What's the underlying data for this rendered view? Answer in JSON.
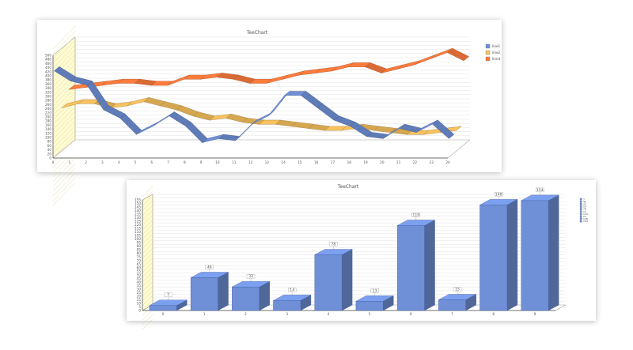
{
  "chart_data": [
    {
      "type": "line",
      "title": "TeeChart",
      "categories": [
        "0",
        "1",
        "2",
        "3",
        "4",
        "5",
        "6",
        "7",
        "8",
        "9",
        "10",
        "11",
        "12",
        "13",
        "14",
        "15",
        "16",
        "17",
        "18",
        "19",
        "20",
        "21",
        "22",
        "23",
        "24"
      ],
      "ylim": [
        0,
        500
      ],
      "yticks": [
        "0",
        "20",
        "40",
        "60",
        "80",
        "100",
        "120",
        "140",
        "160",
        "180",
        "200",
        "220",
        "240",
        "260",
        "280",
        "300",
        "320",
        "340",
        "360",
        "380",
        "400",
        "420",
        "440",
        "460",
        "480",
        "500"
      ],
      "grid": true,
      "legend_position": "right",
      "series": [
        {
          "name": "line1",
          "color": "#6f8fd6",
          "values": [
            420,
            370,
            350,
            230,
            190,
            110,
            150,
            200,
            150,
            70,
            90,
            80,
            160,
            200,
            300,
            300,
            240,
            180,
            150,
            100,
            90,
            140,
            120,
            160,
            90
          ]
        },
        {
          "name": "line2",
          "color": "#f9c25e",
          "values": [
            210,
            230,
            230,
            210,
            220,
            240,
            220,
            200,
            170,
            150,
            160,
            140,
            130,
            130,
            120,
            110,
            100,
            100,
            110,
            100,
            90,
            80,
            80,
            90,
            100
          ]
        },
        {
          "name": "line3",
          "color": "#ff7c3c",
          "values": [
            270,
            280,
            290,
            300,
            300,
            290,
            290,
            320,
            320,
            330,
            320,
            300,
            300,
            320,
            340,
            350,
            360,
            380,
            380,
            350,
            370,
            390,
            420,
            450,
            410
          ]
        }
      ]
    },
    {
      "type": "bar",
      "title": "TeeChart",
      "categories": [
        "0",
        "1",
        "2",
        "3",
        "4",
        "5",
        "6",
        "7",
        "8",
        "9"
      ],
      "values": [
        7,
        46,
        33,
        14,
        78,
        13,
        119,
        15,
        148,
        154
      ],
      "ylim": [
        0,
        155
      ],
      "yticks": [
        "0",
        "5",
        "10",
        "15",
        "20",
        "25",
        "30",
        "35",
        "40",
        "45",
        "50",
        "55",
        "60",
        "65",
        "70",
        "75",
        "80",
        "85",
        "90",
        "95",
        "100",
        "105",
        "110",
        "115",
        "120",
        "125",
        "130",
        "135",
        "140",
        "145",
        "150",
        "155"
      ],
      "grid": true,
      "color": "#6f8fd6",
      "legend_position": "right",
      "legend": [
        "7",
        "46",
        "33",
        "14",
        "78",
        "13",
        "119",
        "15",
        "148",
        "154"
      ]
    }
  ]
}
